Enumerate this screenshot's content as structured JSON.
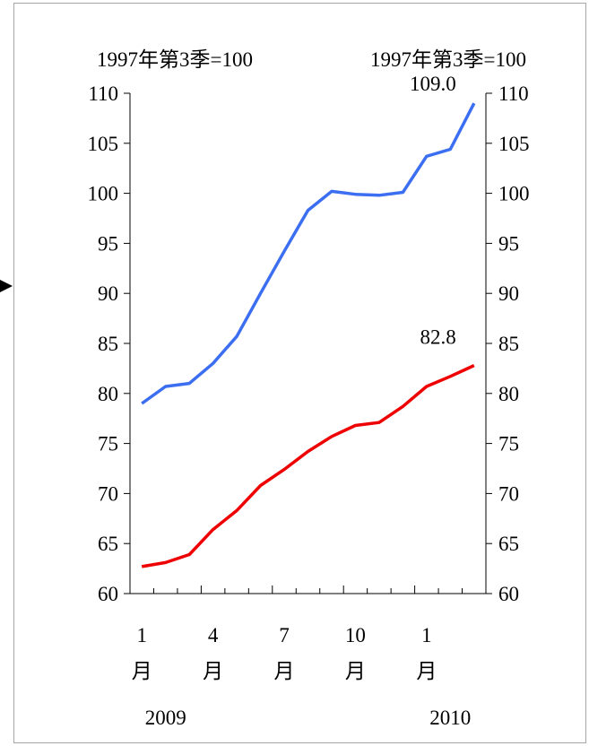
{
  "chart_data": {
    "type": "line",
    "title": "",
    "left_axis_unit": "1997年第3季=100",
    "right_axis_unit": "1997年第3季=100",
    "y_ticks": [
      "110",
      "105",
      "100",
      "95",
      "90",
      "85",
      "80",
      "75",
      "70",
      "65",
      "60"
    ],
    "ylim": [
      60,
      110
    ],
    "x_tick_labels": [
      {
        "index": 0,
        "num": "1",
        "unit": "月"
      },
      {
        "index": 3,
        "num": "4",
        "unit": "月"
      },
      {
        "index": 6,
        "num": "7",
        "unit": "月"
      },
      {
        "index": 9,
        "num": "10",
        "unit": "月"
      },
      {
        "index": 12,
        "num": "1",
        "unit": "月"
      }
    ],
    "year_labels": [
      {
        "index": 1,
        "label": "2009"
      },
      {
        "index": 13,
        "label": "2010"
      }
    ],
    "grid": false,
    "legend": "none",
    "series": [
      {
        "color": "#3b6ef0",
        "values": [
          79.0,
          80.7,
          81.0,
          83.0,
          85.7,
          90.0,
          94.2,
          98.3,
          100.2,
          99.9,
          99.8,
          100.1,
          103.7,
          104.4,
          109.0
        ],
        "end_label": "109.0"
      },
      {
        "color": "#ee0000",
        "values": [
          62.7,
          63.1,
          63.9,
          66.4,
          68.3,
          70.8,
          72.4,
          74.2,
          75.7,
          76.8,
          77.1,
          78.7,
          80.7,
          81.7,
          82.8
        ],
        "end_label": "82.8"
      }
    ]
  }
}
